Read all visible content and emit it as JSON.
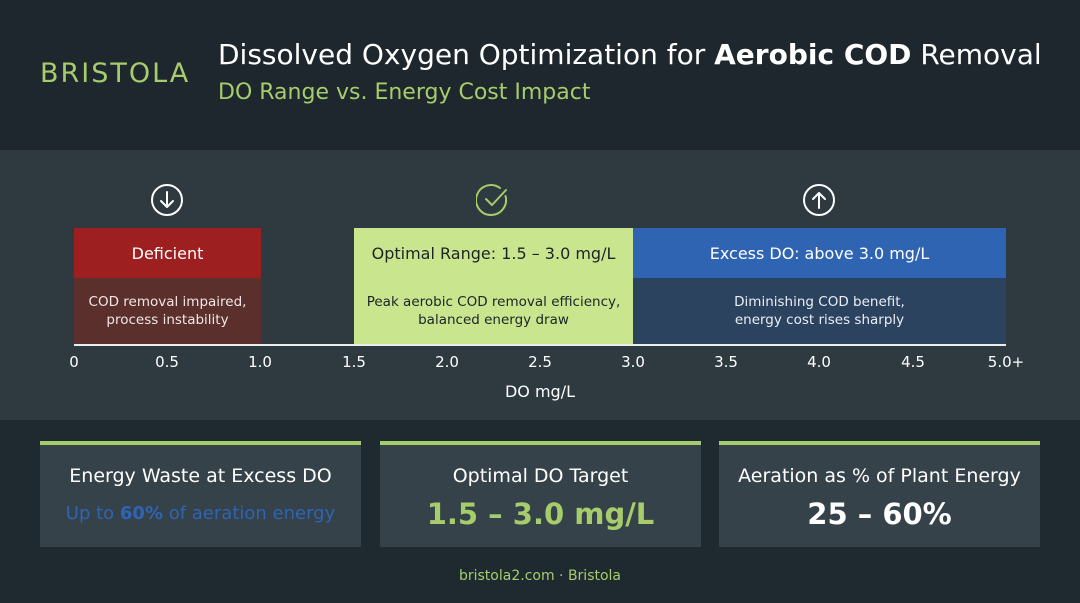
{
  "header": {
    "logo_text": "BRISTOLA",
    "title_prefix": "Dissolved Oxygen Optimization for ",
    "title_bold": "Aerobic COD",
    "title_suffix": " Removal",
    "subtitle": "DO Range vs. Energy Cost Impact"
  },
  "zones": [
    {
      "icon": "arrow-down-circle-icon",
      "label": "Deficient",
      "description_line1": "COD removal impaired,",
      "description_line2": "process instability",
      "color": "#9e1f1f"
    },
    {
      "icon": "check-circle-icon",
      "label": "Optimal Range: 1.5 – 3.0 mg/L",
      "description_line1": "Peak aerobic COD removal efficiency,",
      "description_line2": "balanced energy draw",
      "color": "#c9e58e"
    },
    {
      "icon": "arrow-up-circle-icon",
      "label": "Excess DO: above 3.0 mg/L",
      "description_line1": "Diminishing COD benefit,",
      "description_line2": "energy cost rises sharply",
      "color": "#2f64b3"
    }
  ],
  "axis": {
    "ticks": [
      "0",
      "0.5",
      "1.0",
      "1.5",
      "2.0",
      "2.5",
      "3.0",
      "3.5",
      "4.0",
      "4.5",
      "5.0+"
    ],
    "label": "DO mg/L"
  },
  "cards": [
    {
      "label": "Energy Waste at Excess DO",
      "value_prefix": "Up to ",
      "value_bold": "60%",
      "value_suffix": " of aeration energy"
    },
    {
      "label": "Optimal DO Target",
      "value": "1.5 – 3.0 mg/L"
    },
    {
      "label": "Aeration as % of Plant Energy",
      "value": "25 – 60%"
    }
  ],
  "footer": "bristola2.com · Bristola",
  "colors": {
    "accent": "#a7cc6b",
    "background": "#1f2a30",
    "excess": "#2f64b3",
    "deficient": "#9e1f1f"
  }
}
